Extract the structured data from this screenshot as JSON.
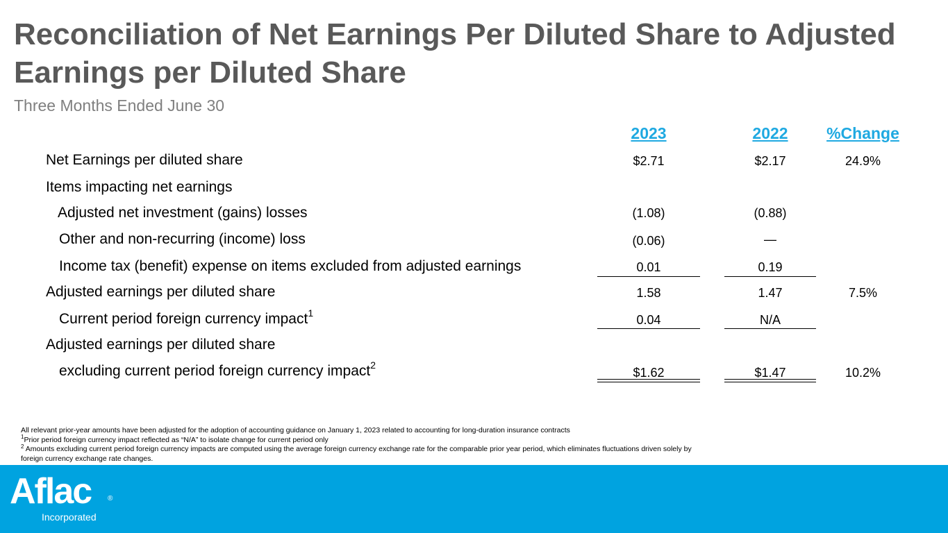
{
  "title": "Reconciliation of Net Earnings Per Diluted Share to Adjusted Earnings per Diluted Share",
  "subtitle": "Three Months Ended June 30",
  "columns": [
    "2023",
    "2022",
    "%Change"
  ],
  "rows": [
    {
      "label": "Net Earnings per diluted share",
      "y2023": "$2.71",
      "y2022": "$2.17",
      "change": "24.9%"
    },
    {
      "label": "Items impacting net earnings",
      "y2023": "",
      "y2022": "",
      "change": ""
    },
    {
      "label": "Adjusted net investment (gains) losses",
      "y2023": "(1.08)",
      "y2022": "(0.88)",
      "change": ""
    },
    {
      "label": "Other and non-recurring (income) loss",
      "y2023": "(0.06)",
      "y2022": "—",
      "change": ""
    },
    {
      "label": "Income tax (benefit) expense on items excluded from adjusted earnings",
      "y2023": "0.01",
      "y2022": "0.19",
      "change": ""
    },
    {
      "label": "Adjusted earnings per diluted share",
      "y2023": "1.58",
      "y2022": "1.47",
      "change": "7.5%"
    },
    {
      "label": "Current period foreign currency impact",
      "sup": "1",
      "y2023": "0.04",
      "y2022": "N/A",
      "change": ""
    },
    {
      "label": "Adjusted earnings per diluted share",
      "y2023": "",
      "y2022": "",
      "change": ""
    },
    {
      "label": "excluding current period foreign currency impact",
      "sup": "2",
      "y2023": "$1.62",
      "y2022": "$1.47",
      "change": "10.2%"
    }
  ],
  "notes": {
    "line1": "All relevant prior-year amounts have been adjusted for the adoption of accounting guidance on January 1, 2023 related to accounting for long-duration insurance contracts",
    "note1_marker": "1",
    "note1": "Prior period foreign currency impact reflected as “N/A” to isolate change for current period only",
    "note2_marker": "2",
    "note2": " Amounts excluding current period foreign currency impacts are computed using the average foreign currency exchange rate for the comparable prior year period, which eliminates fluctuations driven solely by foreign currency exchange rate changes."
  },
  "logo": {
    "wordmark": "Aflac",
    "registered": "®",
    "tagline": "Incorporated"
  },
  "colors": {
    "accent": "#1fa9e1",
    "footer": "#00a3e0",
    "title": "#595959"
  }
}
